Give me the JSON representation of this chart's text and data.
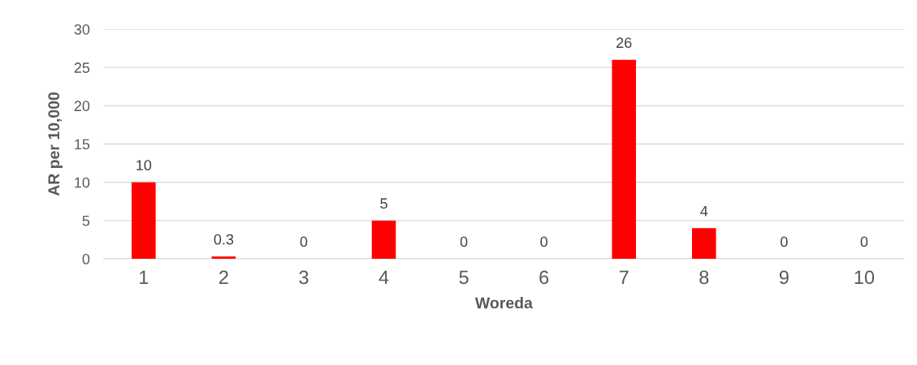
{
  "chart_data": {
    "type": "bar",
    "xlabel": "Woreda",
    "ylabel": "AR per 10,000",
    "categories": [
      "1",
      "2",
      "3",
      "4",
      "5",
      "6",
      "7",
      "8",
      "9",
      "10"
    ],
    "values": [
      10,
      0.3,
      0,
      5,
      0,
      0,
      26,
      4,
      0,
      0
    ],
    "color": "#ff0000",
    "ylim": [
      0,
      30
    ],
    "yticks": [
      0,
      5,
      10,
      15,
      20,
      25,
      30
    ],
    "grid": "y",
    "data_labels": true,
    "legend": false
  }
}
